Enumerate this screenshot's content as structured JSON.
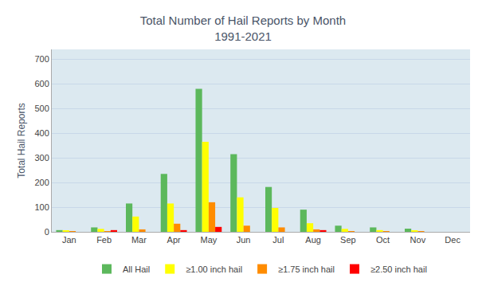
{
  "chart_data": {
    "type": "bar",
    "title": "Total Number of Hail Reports by Month\n1991-2021",
    "ylabel": "Total Hail Reports",
    "categories": [
      "Jan",
      "Feb",
      "Mar",
      "Apr",
      "May",
      "Jun",
      "Jul",
      "Aug",
      "Sep",
      "Oct",
      "Nov",
      "Dec"
    ],
    "series": [
      {
        "name": "All Hail",
        "color": "#5cb85c",
        "values": [
          7,
          18,
          115,
          235,
          580,
          315,
          182,
          90,
          25,
          18,
          13,
          0
        ]
      },
      {
        "name": "≥1.00 inch hail",
        "color": "#ffff00",
        "values": [
          5,
          12,
          62,
          115,
          365,
          140,
          97,
          35,
          12,
          7,
          5,
          0
        ]
      },
      {
        "name": "≥1.75 inch hail",
        "color": "#ff8c00",
        "values": [
          2,
          2,
          10,
          33,
          120,
          25,
          18,
          10,
          3,
          2,
          2,
          0
        ]
      },
      {
        "name": "≥2.50 inch hail",
        "color": "#ff0000",
        "values": [
          0,
          7,
          0,
          7,
          20,
          0,
          0,
          7,
          0,
          0,
          0,
          0
        ]
      }
    ],
    "ylim": [
      0,
      740
    ],
    "yticks": [
      0,
      100,
      200,
      300,
      400,
      500,
      600,
      700
    ],
    "grid": true,
    "legend": "bottom"
  }
}
